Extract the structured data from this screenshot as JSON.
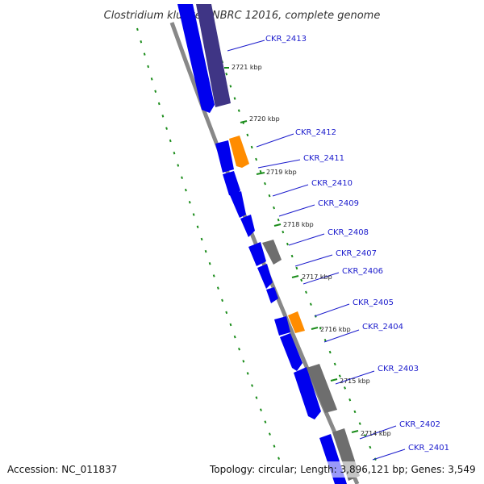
{
  "title": "Clostridium kluyveri NBRC 12016, complete genome",
  "footer": {
    "accession": "Accession: NC_011837",
    "topology": "Topology: circular; Length: 3,896,121 bp; Genes: 3,549"
  },
  "colors": {
    "forward_gene": "#0000ee",
    "reverse_gene": "#3f3585",
    "rrna_trna": "#ff8c00",
    "pseudo_or_other": "#6e6e6e",
    "backbone": "#888888",
    "dotted_track": "#1a8c1a",
    "label": "#1a1acc"
  },
  "gene_labels": [
    "CKR_2413",
    "CKR_2412",
    "CKR_2411",
    "CKR_2410",
    "CKR_2409",
    "CKR_2408",
    "CKR_2407",
    "CKR_2406",
    "CKR_2405",
    "CKR_2404",
    "CKR_2403",
    "CKR_2402",
    "CKR_2401"
  ],
  "scale_labels": [
    "2721 kbp",
    "2720 kbp",
    "2719 kbp",
    "2718 kbp",
    "2717 kbp",
    "2716 kbp",
    "2715 kbp",
    "2714 kbp"
  ]
}
